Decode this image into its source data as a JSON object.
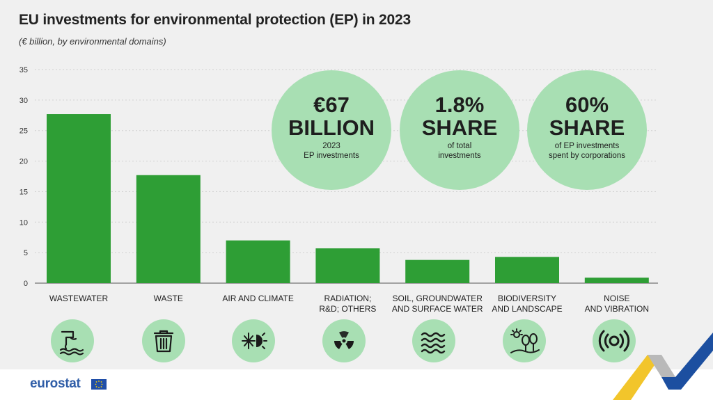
{
  "title": "EU investments for environmental protection (EP) in 2023",
  "subtitle": "(€ billion, by environmental domains)",
  "chart_data": {
    "type": "bar",
    "categories": [
      [
        "WASTEWATER"
      ],
      [
        "WASTE"
      ],
      [
        "AIR AND CLIMATE"
      ],
      [
        "RADIATION;",
        "R&D; OTHERS"
      ],
      [
        "SOIL, GROUNDWATER",
        "AND SURFACE WATER"
      ],
      [
        "BIODIVERSITY",
        "AND LANDSCAPE"
      ],
      [
        "NOISE",
        "AND VIBRATION"
      ]
    ],
    "values": [
      27.7,
      17.7,
      7.0,
      5.7,
      3.8,
      4.3,
      0.9
    ],
    "ylim": [
      0,
      35
    ],
    "yticks": [
      0,
      5,
      10,
      15,
      20,
      25,
      30,
      35
    ],
    "grid": true,
    "bar_color": "#2e9e35"
  },
  "kpis": [
    {
      "big1": "€67",
      "big2": "BILLION",
      "small1": "2023",
      "small2": "EP investments"
    },
    {
      "big1": "1.8%",
      "big2": "SHARE",
      "small1": "of total",
      "small2": "investments"
    },
    {
      "big1": "60%",
      "big2": "SHARE",
      "small1": "of EP investments",
      "small2": "spent by corporations"
    }
  ],
  "category_icons": [
    "wastewater-pipe-icon",
    "waste-bin-icon",
    "snowflake-sun-icon",
    "radiation-icon",
    "water-waves-icon",
    "trees-landscape-icon",
    "sound-vibration-icon"
  ],
  "logo": "eurostat",
  "colors": {
    "background": "#f0f0f0",
    "bar": "#2e9e35",
    "circle": "#a8dfb3",
    "logo": "#2f5da7"
  }
}
